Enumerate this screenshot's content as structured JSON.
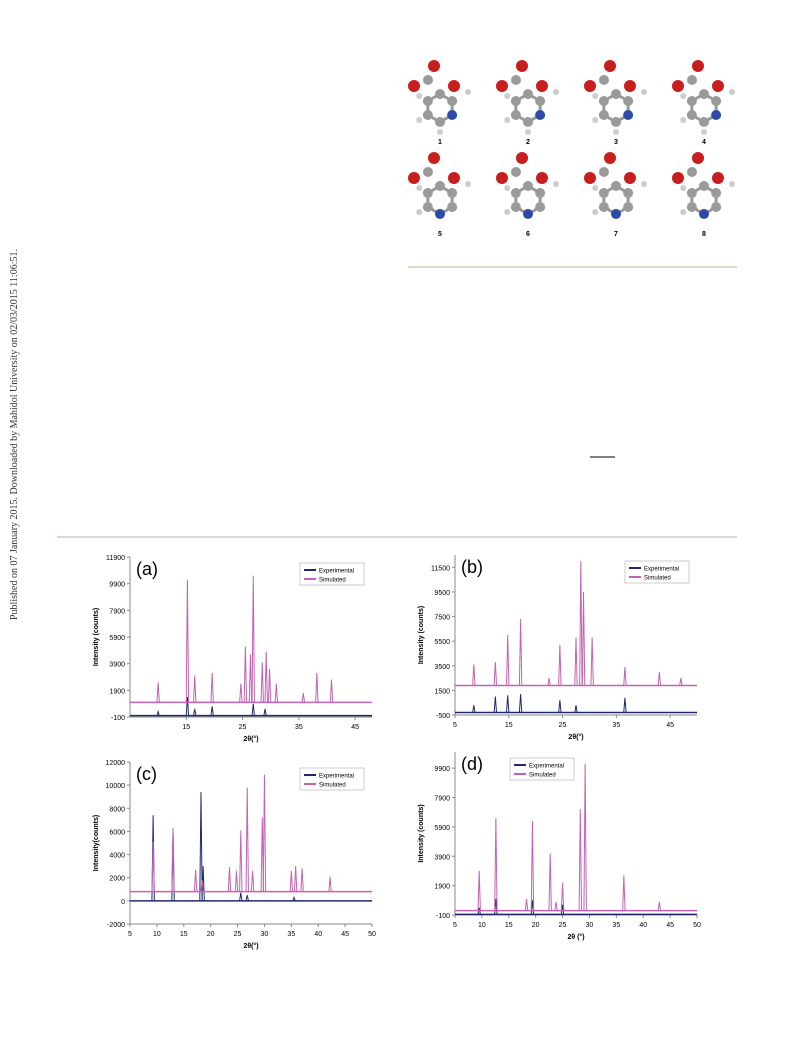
{
  "sidebar": "Published on 07 January 2015. Downloaded by Mahidol University on 02/03/2015 11:06:51.",
  "molecules": [
    "1",
    "2",
    "3",
    "4",
    "5",
    "6",
    "7",
    "8"
  ],
  "chart_data": [
    {
      "type": "line",
      "title": "(a)",
      "xlabel": "2θ(°)",
      "ylabel": "Intensity (counts)",
      "xlim": [
        5,
        48
      ],
      "xticks": [
        15,
        25,
        35,
        45
      ],
      "ylim": [
        -100,
        11900
      ],
      "yticks": [
        -100,
        1900,
        3900,
        5900,
        7900,
        9900,
        11900
      ],
      "legend": "upper right",
      "series": [
        {
          "name": "Experimental",
          "color": "#1f2a6e",
          "baseline": 0,
          "x": [
            10,
            15.2,
            16.5,
            19.6,
            26.9,
            29
          ],
          "values": [
            300,
            1400,
            500,
            700,
            900,
            500
          ]
        },
        {
          "name": "Simulated",
          "color": "#c462b4",
          "baseline": 1000,
          "x": [
            10,
            15.2,
            16.5,
            19.6,
            24.7,
            25.5,
            26.4,
            26.9,
            28.5,
            29.2,
            29.8,
            31,
            35.8,
            38.2,
            40.8
          ],
          "values": [
            2500,
            10200,
            3000,
            3200,
            2400,
            5200,
            4600,
            10500,
            4000,
            4800,
            3500,
            2400,
            1700,
            3200,
            2700
          ]
        }
      ]
    },
    {
      "type": "line",
      "title": "(b)",
      "xlabel": "2θ(°)",
      "ylabel": "Intensity (counts)",
      "xlim": [
        5,
        50
      ],
      "xticks": [
        5,
        15,
        25,
        35,
        45
      ],
      "ylim": [
        -500,
        12500
      ],
      "yticks": [
        -500,
        1500,
        3500,
        5500,
        7500,
        9500,
        11500
      ],
      "legend": "upper right",
      "series": [
        {
          "name": "Experimental",
          "color": "#1f2a6e",
          "baseline": -300,
          "x": [
            8.5,
            12.5,
            14.8,
            17.2,
            24.5,
            27.5,
            36.6
          ],
          "values": [
            300,
            1000,
            1100,
            1200,
            700,
            300,
            900
          ]
        },
        {
          "name": "Simulated",
          "color": "#c462b4",
          "baseline": 1900,
          "x": [
            8.5,
            12.5,
            14.8,
            17.2,
            22.5,
            24.5,
            27.5,
            28.4,
            28.9,
            30.5,
            36.6,
            43,
            47
          ],
          "values": [
            3600,
            3800,
            6000,
            7300,
            2500,
            5200,
            5800,
            12000,
            9500,
            5800,
            3400,
            3000,
            2500
          ]
        }
      ]
    },
    {
      "type": "line",
      "title": "(c)",
      "xlabel": "2θ(°)",
      "ylabel": "Intensity(counts)",
      "xlim": [
        5,
        50
      ],
      "xticks": [
        5,
        10,
        15,
        20,
        25,
        30,
        35,
        40,
        45,
        50
      ],
      "ylim": [
        -2000,
        12000
      ],
      "yticks": [
        -2000,
        0,
        2000,
        4000,
        6000,
        8000,
        10000,
        12000
      ],
      "legend": "upper right",
      "series": [
        {
          "name": "Experimental",
          "color": "#1f2a6e",
          "baseline": 0,
          "x": [
            9.3,
            13,
            18.2,
            18.6,
            25.6,
            26.8,
            35.5
          ],
          "values": [
            7400,
            6000,
            9400,
            3000,
            700,
            500,
            300
          ]
        },
        {
          "name": "Simulated",
          "color": "#c462b4",
          "baseline": 800,
          "x": [
            9.3,
            13,
            17.2,
            18.4,
            23.5,
            24.8,
            25.6,
            26.8,
            27.8,
            29.6,
            30,
            35,
            35.8,
            37,
            42.2
          ],
          "values": [
            5100,
            6300,
            2700,
            1800,
            2900,
            2600,
            6100,
            9800,
            2600,
            7200,
            10900,
            2600,
            3000,
            2800,
            2100
          ]
        }
      ]
    },
    {
      "type": "line",
      "title": "(d)",
      "xlabel": "2θ (°)",
      "ylabel": "Intensity (counts)",
      "xlim": [
        5,
        50
      ],
      "xticks": [
        5,
        10,
        15,
        20,
        25,
        30,
        35,
        40,
        45,
        50
      ],
      "ylim": [
        -100,
        11000
      ],
      "yticks": [
        -100,
        1900,
        3900,
        5900,
        7900,
        9900
      ],
      "legend": "upper left",
      "series": [
        {
          "name": "Experimental",
          "color": "#1f2a6e",
          "baseline": -60,
          "x": [
            9.5,
            12.6,
            19.4,
            25
          ],
          "values": [
            400,
            1000,
            900,
            600
          ]
        },
        {
          "name": "Simulated",
          "color": "#c462b4",
          "baseline": 200,
          "x": [
            9.5,
            12.6,
            18.3,
            19.4,
            22.7,
            23.8,
            25,
            28.3,
            29.2,
            36.4,
            43
          ],
          "values": [
            2900,
            6500,
            1000,
            6300,
            4100,
            800,
            2100,
            7100,
            10200,
            2600,
            800
          ]
        }
      ]
    }
  ]
}
